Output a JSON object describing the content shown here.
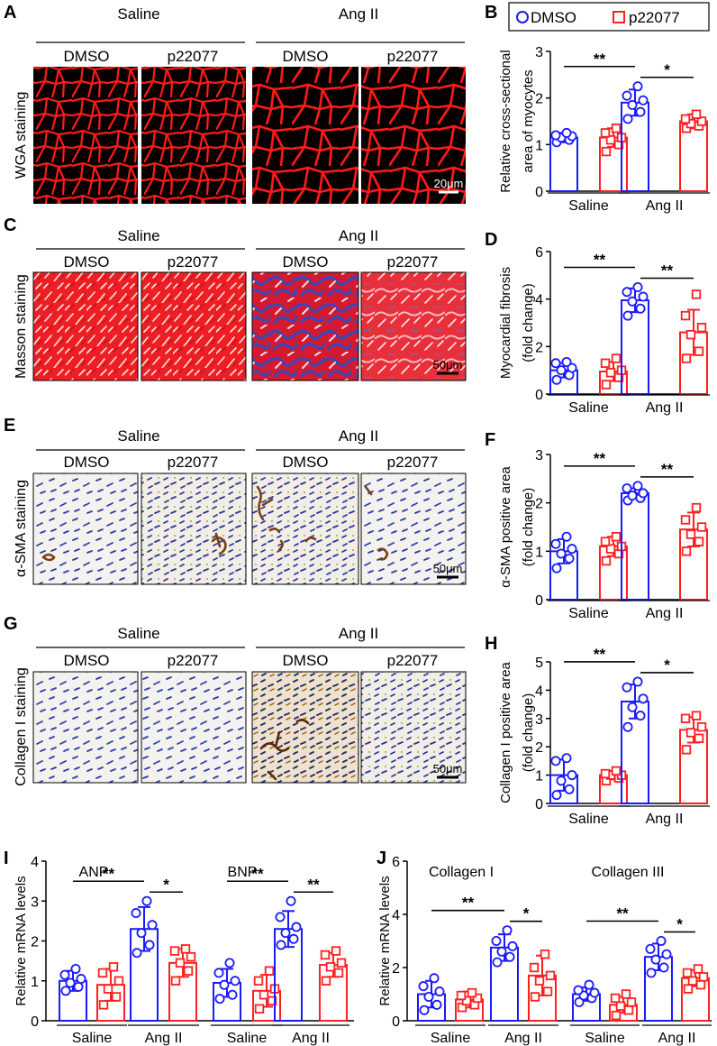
{
  "panels": {
    "A": {
      "letter": "A",
      "groups": [
        "Saline",
        "Ang II"
      ],
      "conditions": [
        "DMSO",
        "p22077",
        "DMSO",
        "p22077"
      ],
      "row_label": "WGA staining",
      "scale_bar": "20μm"
    },
    "C": {
      "letter": "C",
      "groups": [
        "Saline",
        "Ang II"
      ],
      "conditions": [
        "DMSO",
        "p22077",
        "DMSO",
        "p22077"
      ],
      "row_label": "Masson staining",
      "scale_bar": "50μm"
    },
    "E": {
      "letter": "E",
      "groups": [
        "Saline",
        "Ang II"
      ],
      "conditions": [
        "DMSO",
        "p22077",
        "DMSO",
        "p22077"
      ],
      "row_label": "α-SMA staining",
      "scale_bar": "50μm"
    },
    "G": {
      "letter": "G",
      "groups": [
        "Saline",
        "Ang II"
      ],
      "conditions": [
        "DMSO",
        "p22077",
        "DMSO",
        "p22077"
      ],
      "row_label": "Collagen I  staining",
      "scale_bar": "50μm"
    }
  },
  "legend": {
    "dmso": "DMSO",
    "p22077": "p22077"
  },
  "colors": {
    "dmso": "#1a1aff",
    "p22077": "#ff2020",
    "wga_membrane": "#ff1a1a",
    "masson_muscle": "#e8181e",
    "masson_collagen": "#3a4fb0",
    "nuclei": "#2c3fa8",
    "dab": "#7a3f12"
  },
  "chart_data": [
    {
      "panel": "B",
      "type": "bar",
      "ylabel": [
        "Relative cross-sectional",
        "area of myocytes"
      ],
      "ylim": [
        0,
        3
      ],
      "yticks": [
        0,
        1,
        2,
        3
      ],
      "groups": [
        "Saline",
        "Ang II"
      ],
      "series": [
        {
          "name": "DMSO",
          "values": [
            1.15,
            1.9
          ],
          "sd": [
            0.1,
            0.28
          ]
        },
        {
          "name": "p22077",
          "values": [
            1.15,
            1.5
          ],
          "sd": [
            0.2,
            0.15
          ]
        }
      ],
      "points": [
        [
          1.05,
          1.1,
          1.15,
          1.18,
          1.2,
          1.25
        ],
        [
          0.85,
          1.0,
          1.1,
          1.15,
          1.25,
          1.35
        ],
        [
          1.55,
          1.7,
          1.85,
          1.95,
          2.05,
          2.25
        ],
        [
          1.35,
          1.4,
          1.45,
          1.5,
          1.55,
          1.65
        ]
      ],
      "significance": [
        {
          "label": "**",
          "from": 0,
          "to": 2
        },
        {
          "label": "*",
          "from": 2,
          "to": 3
        }
      ]
    },
    {
      "panel": "D",
      "type": "bar",
      "ylabel": [
        "Myocardial fibrosis",
        "(fold change)"
      ],
      "ylim": [
        0,
        6
      ],
      "yticks": [
        0,
        2,
        4,
        6
      ],
      "groups": [
        "Saline",
        "Ang II"
      ],
      "series": [
        {
          "name": "DMSO",
          "values": [
            1.0,
            3.95
          ],
          "sd": [
            0.3,
            0.5
          ]
        },
        {
          "name": "p22077",
          "values": [
            0.95,
            2.6
          ],
          "sd": [
            0.4,
            0.95
          ]
        }
      ],
      "points": [
        [
          0.6,
          0.8,
          1.0,
          1.1,
          1.3,
          1.35
        ],
        [
          0.4,
          0.7,
          0.9,
          1.0,
          1.3,
          1.5
        ],
        [
          3.3,
          3.6,
          3.9,
          4.1,
          4.3,
          4.5
        ],
        [
          1.5,
          1.8,
          2.5,
          2.8,
          3.3,
          4.2
        ]
      ],
      "significance": [
        {
          "label": "**",
          "from": 0,
          "to": 2
        },
        {
          "label": "**",
          "from": 2,
          "to": 3
        }
      ]
    },
    {
      "panel": "F",
      "type": "bar",
      "ylabel": [
        "α-SMA positive area",
        "(fold change)"
      ],
      "ylim": [
        0,
        3
      ],
      "yticks": [
        0,
        1,
        2,
        3
      ],
      "groups": [
        "Saline",
        "Ang II"
      ],
      "series": [
        {
          "name": "DMSO",
          "values": [
            1.0,
            2.2
          ],
          "sd": [
            0.25,
            0.1
          ]
        },
        {
          "name": "p22077",
          "values": [
            1.1,
            1.45
          ],
          "sd": [
            0.2,
            0.35
          ]
        }
      ],
      "points": [
        [
          0.65,
          0.85,
          0.95,
          1.05,
          1.15,
          1.3
        ],
        [
          0.8,
          0.95,
          1.05,
          1.1,
          1.2,
          1.3
        ],
        [
          2.05,
          2.1,
          2.15,
          2.2,
          2.3,
          2.35
        ],
        [
          1.0,
          1.2,
          1.35,
          1.5,
          1.65,
          1.9
        ]
      ],
      "significance": [
        {
          "label": "**",
          "from": 0,
          "to": 2
        },
        {
          "label": "**",
          "from": 2,
          "to": 3
        }
      ]
    },
    {
      "panel": "H",
      "type": "bar",
      "ylabel": [
        "Collagen I positive area",
        "(fold change)"
      ],
      "ylim": [
        0,
        5
      ],
      "yticks": [
        0,
        1,
        2,
        3,
        4,
        5
      ],
      "groups": [
        "Saline",
        "Ang II"
      ],
      "series": [
        {
          "name": "DMSO",
          "values": [
            1.0,
            3.6
          ],
          "sd": [
            0.55,
            0.6
          ]
        },
        {
          "name": "p22077",
          "values": [
            1.0,
            2.6
          ],
          "sd": [
            0.15,
            0.45
          ]
        }
      ],
      "points": [
        [
          0.3,
          0.5,
          0.8,
          1.0,
          1.5,
          1.6
        ],
        [
          0.8,
          0.9,
          1.0,
          1.0,
          1.05,
          1.15
        ],
        [
          2.7,
          3.1,
          3.4,
          3.7,
          4.1,
          4.3
        ],
        [
          1.9,
          2.3,
          2.5,
          2.7,
          3.0,
          3.1
        ]
      ],
      "significance": [
        {
          "label": "**",
          "from": 0,
          "to": 2
        },
        {
          "label": "*",
          "from": 2,
          "to": 3
        }
      ]
    },
    {
      "panel": "I",
      "type": "bar",
      "ylabel": [
        "Relative mRNA levels"
      ],
      "ylim": [
        0,
        4
      ],
      "yticks": [
        0,
        1,
        2,
        3,
        4
      ],
      "subpanels": [
        {
          "title": "ANP",
          "groups": [
            "Saline",
            "Ang II"
          ],
          "series": [
            {
              "name": "DMSO",
              "values": [
                1.0,
                2.3
              ],
              "sd": [
                0.25,
                0.55
              ]
            },
            {
              "name": "p22077",
              "values": [
                0.9,
                1.45
              ],
              "sd": [
                0.4,
                0.35
              ]
            }
          ],
          "points": [
            [
              0.75,
              0.85,
              0.95,
              1.05,
              1.15,
              1.3
            ],
            [
              0.4,
              0.6,
              0.8,
              1.0,
              1.2,
              1.35
            ],
            [
              1.7,
              1.9,
              2.2,
              2.4,
              2.7,
              3.0
            ],
            [
              1.0,
              1.25,
              1.45,
              1.6,
              1.75,
              1.8
            ]
          ],
          "significance": [
            {
              "label": "**",
              "from": 0,
              "to": 2
            },
            {
              "label": "*",
              "from": 2,
              "to": 3
            }
          ]
        },
        {
          "title": "BNP",
          "groups": [
            "Saline",
            "Ang II"
          ],
          "series": [
            {
              "name": "DMSO",
              "values": [
                0.95,
                2.3
              ],
              "sd": [
                0.35,
                0.45
              ]
            },
            {
              "name": "p22077",
              "values": [
                0.75,
                1.4
              ],
              "sd": [
                0.4,
                0.3
              ]
            }
          ],
          "points": [
            [
              0.55,
              0.65,
              0.9,
              1.0,
              1.2,
              1.45
            ],
            [
              0.3,
              0.5,
              0.65,
              0.8,
              1.0,
              1.25
            ],
            [
              1.9,
              2.05,
              2.2,
              2.35,
              2.6,
              3.0
            ],
            [
              1.0,
              1.2,
              1.35,
              1.45,
              1.65,
              1.75
            ]
          ],
          "significance": [
            {
              "label": "**",
              "from": 0,
              "to": 2
            },
            {
              "label": "**",
              "from": 2,
              "to": 3
            }
          ]
        }
      ]
    },
    {
      "panel": "J",
      "type": "bar",
      "ylabel": [
        "Relative mRNA levels"
      ],
      "ylim": [
        0,
        6
      ],
      "yticks": [
        0,
        2,
        4,
        6
      ],
      "subpanels": [
        {
          "title": "Collagen I",
          "groups": [
            "Saline",
            "Ang II"
          ],
          "series": [
            {
              "name": "DMSO",
              "values": [
                1.0,
                2.75
              ],
              "sd": [
                0.5,
                0.5
              ]
            },
            {
              "name": "p22077",
              "values": [
                0.8,
                1.7
              ],
              "sd": [
                0.3,
                0.75
              ]
            }
          ],
          "points": [
            [
              0.4,
              0.6,
              0.9,
              1.1,
              1.3,
              1.6
            ],
            [
              0.5,
              0.6,
              0.75,
              0.85,
              0.95,
              1.05
            ],
            [
              2.2,
              2.4,
              2.6,
              2.8,
              3.0,
              3.4
            ],
            [
              0.9,
              1.1,
              1.5,
              1.7,
              2.0,
              2.5
            ]
          ],
          "significance": [
            {
              "label": "**",
              "from": 0,
              "to": 2
            },
            {
              "label": "*",
              "from": 2,
              "to": 3
            }
          ]
        },
        {
          "title": "Collagen III",
          "groups": [
            "Saline",
            "Ang II"
          ],
          "series": [
            {
              "name": "DMSO",
              "values": [
                1.0,
                2.4
              ],
              "sd": [
                0.25,
                0.5
              ]
            },
            {
              "name": "p22077",
              "values": [
                0.6,
                1.6
              ],
              "sd": [
                0.3,
                0.3
              ]
            }
          ],
          "points": [
            [
              0.7,
              0.85,
              0.95,
              1.05,
              1.15,
              1.35
            ],
            [
              0.2,
              0.4,
              0.55,
              0.7,
              0.85,
              1.0
            ],
            [
              1.8,
              2.0,
              2.3,
              2.5,
              2.7,
              3.0
            ],
            [
              1.2,
              1.35,
              1.5,
              1.65,
              1.8,
              1.95
            ]
          ],
          "significance": [
            {
              "label": "**",
              "from": 0,
              "to": 2
            },
            {
              "label": "*",
              "from": 2,
              "to": 3
            }
          ]
        }
      ]
    }
  ]
}
